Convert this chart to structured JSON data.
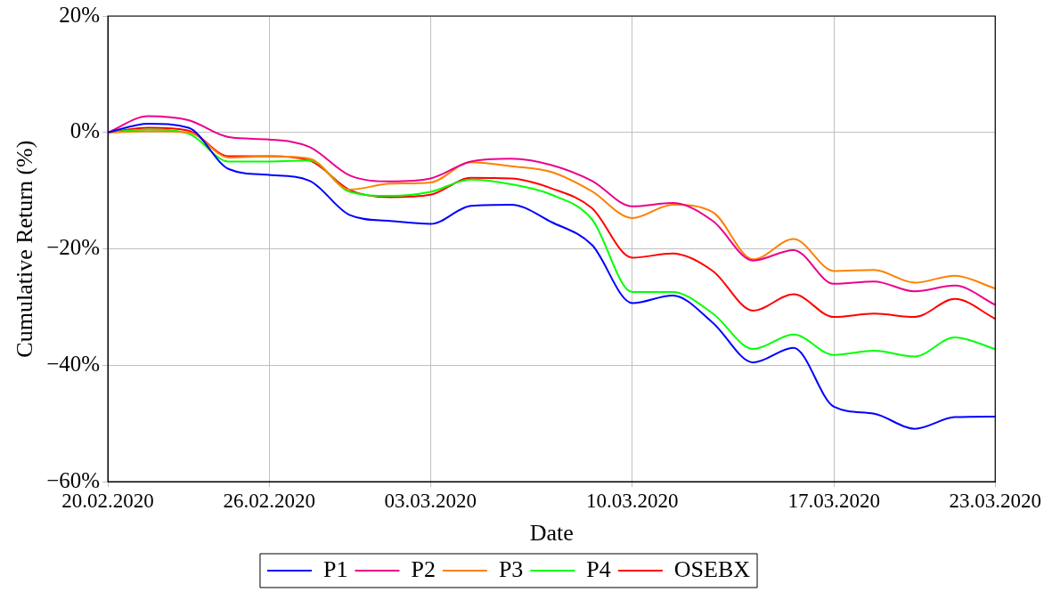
{
  "chart_data": {
    "type": "line",
    "xlabel": "Date",
    "ylabel": "Cumulative Return (%)",
    "categories": [
      "20.02.2020",
      null,
      null,
      null,
      "26.02.2020",
      null,
      null,
      null,
      "03.03.2020",
      null,
      null,
      null,
      null,
      "10.03.2020",
      null,
      null,
      null,
      null,
      "17.03.2020",
      null,
      null,
      null,
      "23.03.2020"
    ],
    "series": [
      {
        "name": "P1",
        "color": "#0000ff",
        "values": [
          0,
          1.5,
          0.8,
          -6.3,
          -7.3,
          -8.3,
          -14.2,
          -15.2,
          -15.7,
          -12.6,
          -12.4,
          -15.4,
          -19.3,
          -29.3,
          -28,
          -32.7,
          -39.5,
          -37,
          -47.1,
          -48.3,
          -50.9,
          -48.9,
          -48.8
        ]
      },
      {
        "name": "P2",
        "color": "#ec008c",
        "values": [
          0,
          2.8,
          2.1,
          -0.8,
          -1.2,
          -2.5,
          -7.4,
          -8.4,
          -7.9,
          -5,
          -4.5,
          -5.6,
          -8.3,
          -12.7,
          -12.1,
          -15.2,
          -22,
          -20.2,
          -26,
          -25.6,
          -27.3,
          -26.3,
          -29.6
        ]
      },
      {
        "name": "P3",
        "color": "#ff8000",
        "values": [
          0,
          0.2,
          0,
          -4.3,
          -4.1,
          -4.5,
          -9.8,
          -8.8,
          -8.6,
          -5.1,
          -5.8,
          -6.8,
          -10.1,
          -14.7,
          -12.4,
          -13.7,
          -21.8,
          -18.3,
          -23.8,
          -23.6,
          -25.8,
          -24.6,
          -26.8
        ]
      },
      {
        "name": "P4",
        "color": "#00ff00",
        "values": [
          0,
          0.5,
          -0.2,
          -5,
          -5,
          -4.8,
          -10.2,
          -10.9,
          -10.2,
          -8.1,
          -8.9,
          -10.7,
          -14.9,
          -27.4,
          -27.4,
          -31.1,
          -37.2,
          -34.7,
          -38.2,
          -37.5,
          -38.5,
          -35.2,
          -37.2
        ]
      },
      {
        "name": "OSEBX",
        "color": "#ff0000",
        "values": [
          0,
          0.8,
          0.3,
          -4.1,
          -4.1,
          -4.8,
          -9.9,
          -11.1,
          -10.7,
          -7.8,
          -7.9,
          -9.6,
          -13,
          -21.5,
          -20.8,
          -23.8,
          -30.6,
          -27.8,
          -31.7,
          -31.1,
          -31.7,
          -28.6,
          -32
        ]
      }
    ],
    "ylim": [
      -60,
      20
    ],
    "yticks": [
      {
        "value": -60,
        "label": "−60%"
      },
      {
        "value": -40,
        "label": "−40%"
      },
      {
        "value": -20,
        "label": "−20%"
      },
      {
        "value": 0,
        "label": "0%"
      },
      {
        "value": 20,
        "label": "20%"
      }
    ],
    "grid": true,
    "legend": "bottom",
    "marker": "none",
    "line_style": "solid"
  }
}
